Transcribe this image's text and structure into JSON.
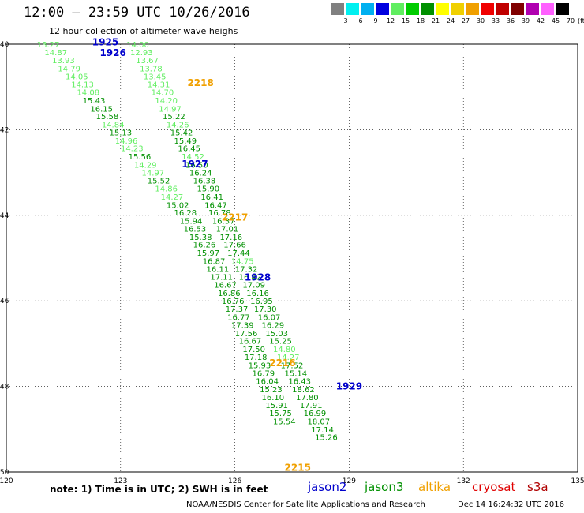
{
  "header": {
    "title": "12:00 – 23:59 UTC 10/26/2016",
    "subtitle": "12 hour collection of altimeter wave heighs"
  },
  "legend": {
    "unit": "(ft)",
    "bins": [
      {
        "label": "3",
        "color": "#808080"
      },
      {
        "label": "6",
        "color": "#00f0f0"
      },
      {
        "label": "9",
        "color": "#00b0f0"
      },
      {
        "label": "12",
        "color": "#0000e0"
      },
      {
        "label": "15",
        "color": "#60ee60"
      },
      {
        "label": "18",
        "color": "#00cc00"
      },
      {
        "label": "21",
        "color": "#009000"
      },
      {
        "label": "24",
        "color": "#ffff00"
      },
      {
        "label": "27",
        "color": "#f0d000"
      },
      {
        "label": "30",
        "color": "#f0a000"
      },
      {
        "label": "33",
        "color": "#f00000"
      },
      {
        "label": "36",
        "color": "#c00000"
      },
      {
        "label": "39",
        "color": "#800000"
      },
      {
        "label": "42",
        "color": "#b000b0"
      },
      {
        "label": "45",
        "color": "#ff60ff"
      },
      {
        "label": "70",
        "color": "#000000"
      }
    ]
  },
  "footer": {
    "note": "note:  1) Time is in UTC;  2) SWH is in feet",
    "agency": "NOAA/NESDIS Center for Satellite Applications and Research",
    "timestamp": "Dec 14 16:24:32 UTC 2016",
    "satellites": [
      {
        "name": "jason2",
        "color": "#0000cc"
      },
      {
        "name": "jason3",
        "color": "#009000"
      },
      {
        "name": "altika",
        "color": "#f0a000"
      },
      {
        "name": "cryosat",
        "color": "#e00000"
      },
      {
        "name": "s3a",
        "color": "#b00000"
      }
    ]
  },
  "chart_data": {
    "type": "scatter",
    "xlim": [
      120,
      135
    ],
    "ylim": [
      -50,
      -40
    ],
    "x_ticks": [
      "120",
      "123",
      "126",
      "129",
      "132",
      "135"
    ],
    "y_ticks": [
      "-40",
      "-42",
      "-44",
      "-46",
      "-48",
      "-50"
    ],
    "grid": true,
    "time_markers": [
      {
        "label": "1925",
        "lon": 122.6,
        "lat": -39.95,
        "color": "#0000cc"
      },
      {
        "label": "1926",
        "lon": 122.8,
        "lat": -40.2,
        "color": "#0000cc"
      },
      {
        "label": "2218",
        "lon": 125.1,
        "lat": -40.9,
        "color": "#f0a000"
      },
      {
        "label": "1927",
        "lon": 124.95,
        "lat": -42.8,
        "color": "#0000cc"
      },
      {
        "label": "2217",
        "lon": 126.0,
        "lat": -44.05,
        "color": "#f0a000"
      },
      {
        "label": "1928",
        "lon": 126.6,
        "lat": -45.45,
        "color": "#0000cc"
      },
      {
        "label": "2216",
        "lon": 127.25,
        "lat": -47.45,
        "color": "#f0a000"
      },
      {
        "label": "1929",
        "lon": 129.0,
        "lat": -48.0,
        "color": "#0000cc"
      },
      {
        "label": "2215",
        "lon": 127.65,
        "lat": -49.9,
        "color": "#f0a000"
      }
    ],
    "tracks": [
      {
        "satellite": "jason3",
        "points": [
          {
            "lon": 121.1,
            "lat": -40.0,
            "swh": 13.27,
            "color": "#60ee60"
          },
          {
            "lon": 121.3,
            "lat": -40.18,
            "swh": 14.87,
            "color": "#60ee60"
          },
          {
            "lon": 121.5,
            "lat": -40.37,
            "swh": 13.93,
            "color": "#60ee60"
          },
          {
            "lon": 121.65,
            "lat": -40.56,
            "swh": 14.79,
            "color": "#60ee60"
          },
          {
            "lon": 121.85,
            "lat": -40.75,
            "swh": 14.05,
            "color": "#60ee60"
          },
          {
            "lon": 122.0,
            "lat": -40.93,
            "swh": 14.13,
            "color": "#60ee60"
          },
          {
            "lon": 122.15,
            "lat": -41.12,
            "swh": 14.08,
            "color": "#60ee60"
          },
          {
            "lon": 122.3,
            "lat": -41.31,
            "swh": 15.43,
            "color": "#009000"
          },
          {
            "lon": 122.5,
            "lat": -41.5,
            "swh": 16.15,
            "color": "#009000"
          },
          {
            "lon": 122.65,
            "lat": -41.68,
            "swh": 15.58,
            "color": "#009000"
          },
          {
            "lon": 122.8,
            "lat": -41.87,
            "swh": 14.84,
            "color": "#60ee60"
          },
          {
            "lon": 123.0,
            "lat": -42.06,
            "swh": 15.13,
            "color": "#009000"
          },
          {
            "lon": 123.15,
            "lat": -42.25,
            "swh": 14.96,
            "color": "#60ee60"
          },
          {
            "lon": 123.3,
            "lat": -42.43,
            "swh": 14.23,
            "color": "#60ee60"
          },
          {
            "lon": 123.5,
            "lat": -42.62,
            "swh": 15.56,
            "color": "#009000"
          },
          {
            "lon": 123.65,
            "lat": -42.81,
            "swh": 14.29,
            "color": "#60ee60"
          },
          {
            "lon": 123.85,
            "lat": -43.0,
            "swh": 14.97,
            "color": "#60ee60"
          },
          {
            "lon": 124.0,
            "lat": -43.18,
            "swh": 15.52,
            "color": "#009000"
          },
          {
            "lon": 124.2,
            "lat": -43.37,
            "swh": 14.86,
            "color": "#60ee60"
          },
          {
            "lon": 124.35,
            "lat": -43.56,
            "swh": 14.27,
            "color": "#60ee60"
          },
          {
            "lon": 124.5,
            "lat": -43.75,
            "swh": 15.02,
            "color": "#009000"
          },
          {
            "lon": 124.7,
            "lat": -43.93,
            "swh": 16.28,
            "color": "#009000"
          },
          {
            "lon": 124.85,
            "lat": -44.12,
            "swh": 15.94,
            "color": "#009000"
          },
          {
            "lon": 124.95,
            "lat": -44.31,
            "swh": 16.53,
            "color": "#009000"
          },
          {
            "lon": 125.1,
            "lat": -44.5,
            "swh": 15.38,
            "color": "#009000"
          },
          {
            "lon": 125.2,
            "lat": -44.68,
            "swh": 16.26,
            "color": "#009000"
          },
          {
            "lon": 125.3,
            "lat": -44.87,
            "swh": 15.97,
            "color": "#009000"
          },
          {
            "lon": 125.45,
            "lat": -45.06,
            "swh": 16.87,
            "color": "#009000"
          },
          {
            "lon": 125.55,
            "lat": -45.25,
            "swh": 16.11,
            "color": "#009000"
          },
          {
            "lon": 125.65,
            "lat": -45.43,
            "swh": 17.11,
            "color": "#009000"
          },
          {
            "lon": 125.75,
            "lat": -45.62,
            "swh": 16.67,
            "color": "#009000"
          },
          {
            "lon": 125.85,
            "lat": -45.81,
            "swh": 16.86,
            "color": "#009000"
          },
          {
            "lon": 125.95,
            "lat": -46.0,
            "swh": 16.76,
            "color": "#009000"
          },
          {
            "lon": 126.05,
            "lat": -46.18,
            "swh": 17.37,
            "color": "#009000"
          },
          {
            "lon": 126.1,
            "lat": -46.37,
            "swh": 16.77,
            "color": "#009000"
          },
          {
            "lon": 126.2,
            "lat": -46.56,
            "swh": 17.39,
            "color": "#009000"
          },
          {
            "lon": 126.3,
            "lat": -46.75,
            "swh": 17.56,
            "color": "#009000"
          },
          {
            "lon": 126.4,
            "lat": -46.93,
            "swh": 16.67,
            "color": "#009000"
          },
          {
            "lon": 126.5,
            "lat": -47.12,
            "swh": 17.5,
            "color": "#009000"
          },
          {
            "lon": 126.55,
            "lat": -47.31,
            "swh": 17.18,
            "color": "#009000"
          },
          {
            "lon": 126.65,
            "lat": -47.5,
            "swh": 15.93,
            "color": "#009000"
          },
          {
            "lon": 126.75,
            "lat": -47.68,
            "swh": 16.79,
            "color": "#009000"
          },
          {
            "lon": 126.85,
            "lat": -47.87,
            "swh": 16.04,
            "color": "#009000"
          },
          {
            "lon": 126.95,
            "lat": -48.06,
            "swh": 15.23,
            "color": "#009000"
          },
          {
            "lon": 127.0,
            "lat": -48.25,
            "swh": 16.1,
            "color": "#009000"
          },
          {
            "lon": 127.1,
            "lat": -48.43,
            "swh": 15.91,
            "color": "#009000"
          },
          {
            "lon": 127.2,
            "lat": -48.62,
            "swh": 15.75,
            "color": "#009000"
          },
          {
            "lon": 127.3,
            "lat": -48.81,
            "swh": 15.54,
            "color": "#009000"
          }
        ]
      },
      {
        "satellite": "jason3",
        "points": [
          {
            "lon": 123.45,
            "lat": -40.0,
            "swh": 14.0,
            "color": "#60ee60"
          },
          {
            "lon": 123.55,
            "lat": -40.18,
            "swh": 12.93,
            "color": "#60ee60"
          },
          {
            "lon": 123.7,
            "lat": -40.37,
            "swh": 13.67,
            "color": "#60ee60"
          },
          {
            "lon": 123.8,
            "lat": -40.56,
            "swh": 13.78,
            "color": "#60ee60"
          },
          {
            "lon": 123.9,
            "lat": -40.75,
            "swh": 13.45,
            "color": "#60ee60"
          },
          {
            "lon": 124.0,
            "lat": -40.93,
            "swh": 14.31,
            "color": "#60ee60"
          },
          {
            "lon": 124.1,
            "lat": -41.12,
            "swh": 14.7,
            "color": "#60ee60"
          },
          {
            "lon": 124.2,
            "lat": -41.31,
            "swh": 14.2,
            "color": "#60ee60"
          },
          {
            "lon": 124.3,
            "lat": -41.5,
            "swh": 14.97,
            "color": "#60ee60"
          },
          {
            "lon": 124.4,
            "lat": -41.68,
            "swh": 15.22,
            "color": "#009000"
          },
          {
            "lon": 124.5,
            "lat": -41.87,
            "swh": 14.26,
            "color": "#60ee60"
          },
          {
            "lon": 124.6,
            "lat": -42.06,
            "swh": 15.42,
            "color": "#009000"
          },
          {
            "lon": 124.7,
            "lat": -42.25,
            "swh": 15.49,
            "color": "#009000"
          },
          {
            "lon": 124.8,
            "lat": -42.43,
            "swh": 16.45,
            "color": "#009000"
          },
          {
            "lon": 124.9,
            "lat": -42.62,
            "swh": 14.52,
            "color": "#60ee60"
          },
          {
            "lon": 125.0,
            "lat": -42.81,
            "swh": 16.5,
            "color": "#009000"
          },
          {
            "lon": 125.1,
            "lat": -43.0,
            "swh": 16.24,
            "color": "#009000"
          },
          {
            "lon": 125.2,
            "lat": -43.18,
            "swh": 16.38,
            "color": "#009000"
          },
          {
            "lon": 125.3,
            "lat": -43.37,
            "swh": 15.9,
            "color": "#009000"
          },
          {
            "lon": 125.4,
            "lat": -43.56,
            "swh": 16.41,
            "color": "#009000"
          },
          {
            "lon": 125.5,
            "lat": -43.75,
            "swh": 16.47,
            "color": "#009000"
          },
          {
            "lon": 125.6,
            "lat": -43.93,
            "swh": 16.78,
            "color": "#009000"
          },
          {
            "lon": 125.7,
            "lat": -44.12,
            "swh": 16.37,
            "color": "#009000"
          },
          {
            "lon": 125.8,
            "lat": -44.31,
            "swh": 17.01,
            "color": "#009000"
          },
          {
            "lon": 125.9,
            "lat": -44.5,
            "swh": 17.16,
            "color": "#009000"
          },
          {
            "lon": 126.0,
            "lat": -44.68,
            "swh": 17.66,
            "color": "#009000"
          },
          {
            "lon": 126.1,
            "lat": -44.87,
            "swh": 17.44,
            "color": "#009000"
          },
          {
            "lon": 126.2,
            "lat": -45.06,
            "swh": 14.75,
            "color": "#60ee60"
          },
          {
            "lon": 126.3,
            "lat": -45.25,
            "swh": 17.32,
            "color": "#009000"
          },
          {
            "lon": 126.4,
            "lat": -45.43,
            "swh": 16.42,
            "color": "#009000"
          },
          {
            "lon": 126.5,
            "lat": -45.62,
            "swh": 17.09,
            "color": "#009000"
          },
          {
            "lon": 126.6,
            "lat": -45.81,
            "swh": 16.16,
            "color": "#009000"
          },
          {
            "lon": 126.7,
            "lat": -46.0,
            "swh": 16.95,
            "color": "#009000"
          },
          {
            "lon": 126.8,
            "lat": -46.18,
            "swh": 17.3,
            "color": "#009000"
          },
          {
            "lon": 126.9,
            "lat": -46.37,
            "swh": 16.07,
            "color": "#009000"
          },
          {
            "lon": 127.0,
            "lat": -46.56,
            "swh": 16.29,
            "color": "#009000"
          },
          {
            "lon": 127.1,
            "lat": -46.75,
            "swh": 15.03,
            "color": "#009000"
          },
          {
            "lon": 127.2,
            "lat": -46.93,
            "swh": 15.25,
            "color": "#009000"
          },
          {
            "lon": 127.3,
            "lat": -47.12,
            "swh": 14.8,
            "color": "#60ee60"
          },
          {
            "lon": 127.4,
            "lat": -47.31,
            "swh": 14.27,
            "color": "#60ee60"
          },
          {
            "lon": 127.5,
            "lat": -47.5,
            "swh": 17.52,
            "color": "#009000"
          },
          {
            "lon": 127.6,
            "lat": -47.68,
            "swh": 15.14,
            "color": "#009000"
          },
          {
            "lon": 127.7,
            "lat": -47.87,
            "swh": 16.43,
            "color": "#009000"
          },
          {
            "lon": 127.8,
            "lat": -48.06,
            "swh": 18.62,
            "color": "#009000"
          },
          {
            "lon": 127.9,
            "lat": -48.25,
            "swh": 17.8,
            "color": "#009000"
          },
          {
            "lon": 128.0,
            "lat": -48.43,
            "swh": 17.91,
            "color": "#009000"
          },
          {
            "lon": 128.1,
            "lat": -48.62,
            "swh": 16.99,
            "color": "#009000"
          },
          {
            "lon": 128.2,
            "lat": -48.81,
            "swh": 18.07,
            "color": "#009000"
          },
          {
            "lon": 128.3,
            "lat": -49.0,
            "swh": 17.14,
            "color": "#009000"
          },
          {
            "lon": 128.4,
            "lat": -49.18,
            "swh": 15.26,
            "color": "#009000"
          }
        ]
      }
    ]
  }
}
